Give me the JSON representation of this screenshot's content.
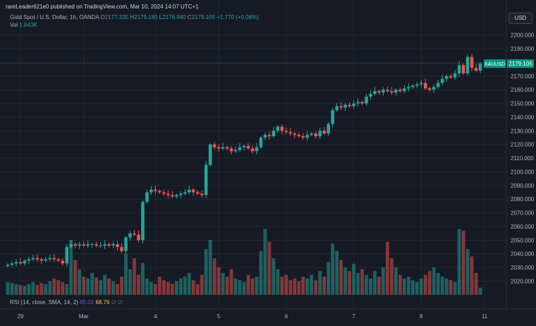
{
  "publisher": "rareLeader621e0 published on TradingView.com, Mar 10, 2024 14:07 UTC+1",
  "symbol": {
    "title": "Gold Spot / U.S. Dollar, 1h, OANDA",
    "o_label": "O",
    "o": "2177.335",
    "h_label": "H",
    "h": "2179.180",
    "l_label": "L",
    "l": "2176.940",
    "c_label": "C",
    "c": "2179.105",
    "change": "+1.770 (+0.08%)"
  },
  "volume": {
    "label": "Vol",
    "value": "1.843K"
  },
  "currency_button": "USD",
  "price_tag": {
    "symbol": "XAUUSD",
    "price": "2179.105"
  },
  "rsi": {
    "label": "RSI (14, close, SMA, 14, 2)",
    "rsi_value": "65.02",
    "ma_value": "68.76",
    "icon1": "∅",
    "icon2": "∅"
  },
  "colors": {
    "up": "#26a69a",
    "down": "#ef5350",
    "bg": "#161a25",
    "grid": "#232733",
    "accent": "#089981"
  },
  "chart_data": {
    "type": "candlestick",
    "title": "Gold Spot / U.S. Dollar, 1h, OANDA",
    "ylim": [
      2012,
      2205
    ],
    "y_ticks": [
      2020,
      2030,
      2040,
      2050,
      2060,
      2070,
      2080,
      2090,
      2100,
      2110,
      2120,
      2130,
      2140,
      2150,
      2160,
      2170,
      2180,
      2190,
      2200
    ],
    "x_tick_labels": [
      {
        "label": "29",
        "bar": 3
      },
      {
        "label": "Mar",
        "bar": 18
      },
      {
        "label": "4",
        "bar": 35
      },
      {
        "label": "5",
        "bar": 50
      },
      {
        "label": "6",
        "bar": 66
      },
      {
        "label": "7",
        "bar": 82
      },
      {
        "label": "8",
        "bar": 98
      },
      {
        "label": "11",
        "bar": 113
      }
    ],
    "last_price": 2179.105,
    "closes": [
      2032,
      2033,
      2034,
      2033,
      2035,
      2036,
      2037,
      2036,
      2035,
      2036,
      2037,
      2036,
      2035,
      2033,
      2045,
      2047,
      2046,
      2047,
      2046,
      2047,
      2047,
      2046,
      2046,
      2047,
      2046,
      2047,
      2045,
      2042,
      2052,
      2055,
      2054,
      2050,
      2078,
      2085,
      2087,
      2086,
      2085,
      2084,
      2083,
      2082,
      2083,
      2084,
      2085,
      2087,
      2085,
      2084,
      2083,
      2105,
      2120,
      2118,
      2117,
      2118,
      2117,
      2115,
      2116,
      2118,
      2119,
      2117,
      2115,
      2118,
      2125,
      2127,
      2126,
      2130,
      2133,
      2130,
      2129,
      2128,
      2127,
      2126,
      2125,
      2127,
      2128,
      2126,
      2130,
      2128,
      2135,
      2145,
      2148,
      2147,
      2149,
      2148,
      2150,
      2151,
      2150,
      2155,
      2157,
      2159,
      2158,
      2160,
      2159,
      2158,
      2160,
      2159,
      2161,
      2162,
      2163,
      2164,
      2165,
      2161,
      2160,
      2162,
      2165,
      2168,
      2170,
      2169,
      2172,
      2178,
      2172,
      2184,
      2176,
      2174,
      2179.105
    ],
    "volume": [
      14,
      13,
      12,
      11,
      10,
      12,
      14,
      11,
      13,
      12,
      15,
      18,
      16,
      14,
      12,
      60,
      38,
      28,
      20,
      18,
      24,
      19,
      16,
      22,
      18,
      15,
      12,
      20,
      45,
      28,
      40,
      22,
      35,
      18,
      14,
      12,
      20,
      16,
      14,
      12,
      15,
      18,
      20,
      24,
      16,
      12,
      22,
      50,
      60,
      40,
      30,
      24,
      20,
      28,
      18,
      16,
      14,
      22,
      18,
      20,
      48,
      72,
      58,
      40,
      28,
      20,
      22,
      16,
      18,
      15,
      20,
      18,
      22,
      16,
      26,
      20,
      36,
      56,
      48,
      38,
      30,
      26,
      34,
      24,
      28,
      22,
      18,
      26,
      20,
      30,
      58,
      40,
      30,
      22,
      18,
      20,
      16,
      14,
      18,
      22,
      26,
      30,
      24,
      20,
      18,
      16,
      14,
      72,
      70,
      50,
      42,
      24,
      8
    ]
  }
}
